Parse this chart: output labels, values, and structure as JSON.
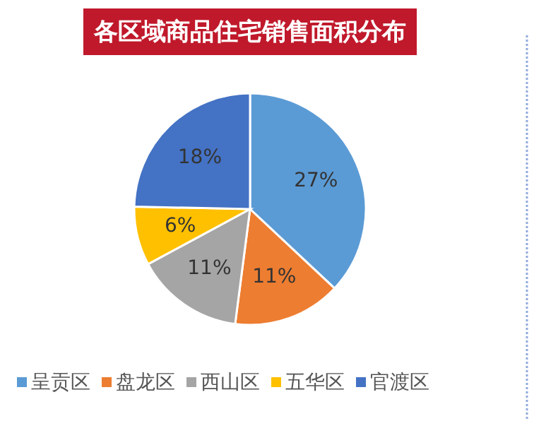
{
  "chart_data": {
    "type": "pie",
    "title": "各区域商品住宅销售面积分布",
    "categories": [
      "呈贡区",
      "盘龙区",
      "西山区",
      "五华区",
      "官渡区"
    ],
    "values": [
      27,
      11,
      11,
      6,
      18
    ],
    "colors": [
      "#5b9bd5",
      "#ed7d31",
      "#a5a5a5",
      "#ffc000",
      "#4472c4"
    ],
    "value_labels": [
      "27%",
      "11%",
      "11%",
      "6%",
      "18%"
    ],
    "legend": "bottom"
  }
}
